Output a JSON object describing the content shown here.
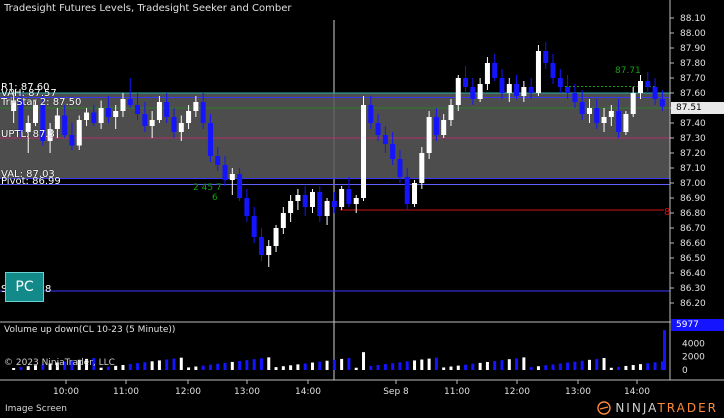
{
  "chart": {
    "title": "Tradesight Futures Levels, Tradesight Seeker and Comber",
    "current_price": "87.51",
    "y_ticks": [
      "88.10",
      "88.00",
      "87.90",
      "87.80",
      "87.70",
      "87.60",
      "87.50",
      "87.40",
      "87.30",
      "87.20",
      "87.10",
      "87.00",
      "86.90",
      "86.80",
      "86.70",
      "86.60",
      "86.50",
      "86.40",
      "86.30",
      "86.20"
    ],
    "x_ticks": [
      "10:00",
      "11:00",
      "12:00",
      "13:00",
      "14:00",
      "Sep 8",
      "11:00",
      "12:00",
      "13:00",
      "14:00"
    ],
    "levels": {
      "r1": "R1: 87.60",
      "vah": "VAH: 87.57",
      "tri_star": "Tri-Star 2: 87.50",
      "uptl": "UPTL: 87.3",
      "val": "VAL: 87.03",
      "pivot": "Pivot: 86.99",
      "s": "S",
      "s_tail": "8"
    },
    "annotations": {
      "seeker_low": "2 45 7",
      "seeker_low_b": "6",
      "comber_high": "87.71",
      "red_marker": "8"
    },
    "colors": {
      "up_candle": "#ffffff",
      "down_candle": "#1414ff",
      "value_area": "#5a5a5a",
      "level_line": "#3a3aff",
      "red_level": "#d01010",
      "seeker_green": "#12a012"
    }
  },
  "volume": {
    "title": "Volume up down(CL 10-23 (5 Minute))",
    "last_value": "5977",
    "y_ticks": [
      "4000",
      "2000",
      "0"
    ]
  },
  "pc_button": {
    "label": "PC"
  },
  "copyright": "© 2023 NinjaTrader, LLC",
  "footer": {
    "label": "Image Screen",
    "brand_left": "NINJA",
    "brand_right": "TRADER"
  }
}
